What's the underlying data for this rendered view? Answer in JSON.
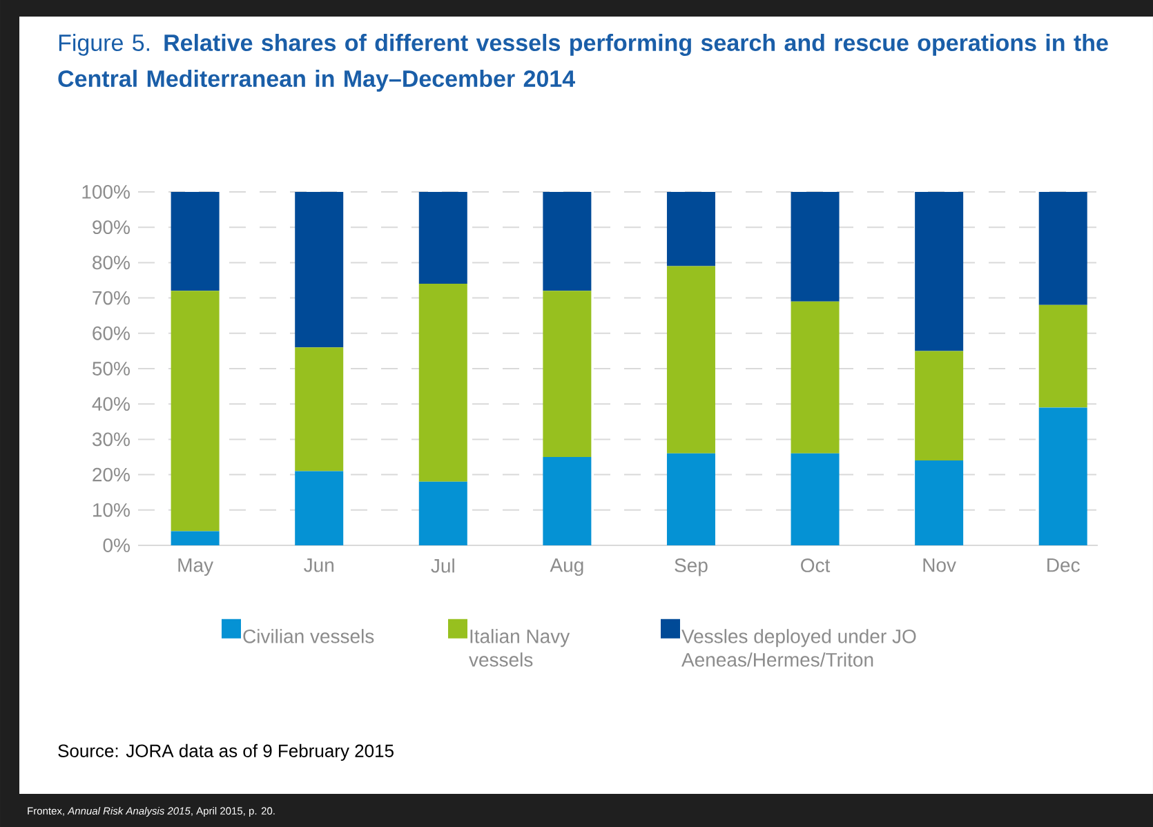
{
  "chart_data": {
    "type": "bar",
    "stacked": true,
    "title": "Figure 5. **Relative shares of different vessels performing search and rescue operations in the Central Mediterranean in May–December 2014**",
    "categories": [
      "May",
      "Jun",
      "Jul",
      "Aug",
      "Sep",
      "Oct",
      "Nov",
      "Dec"
    ],
    "series": [
      {
        "name": "Civilian vessels",
        "color": "#0592d4",
        "values": [
          4,
          21,
          18,
          25,
          26,
          26,
          24,
          39
        ]
      },
      {
        "name": "Italian Navy vessels",
        "color": "#97c01f",
        "values": [
          68,
          35,
          56,
          47,
          53,
          43,
          31,
          29
        ]
      },
      {
        "name": "Vessles deployed under JO Aeneas/Hermes/Triton",
        "color": "#004a97",
        "values": [
          28,
          44,
          26,
          28,
          21,
          31,
          45,
          32
        ]
      }
    ],
    "ylim": [
      0,
      100
    ],
    "yticks": [
      {
        "value": 0,
        "label": "0%"
      },
      {
        "value": 10,
        "label": "10%"
      },
      {
        "value": 20,
        "label": "20%"
      },
      {
        "value": 30,
        "label": "30%"
      },
      {
        "value": 40,
        "label": "40%"
      },
      {
        "value": 50,
        "label": "50%"
      },
      {
        "value": 60,
        "label": "60%"
      },
      {
        "value": 70,
        "label": "70%"
      },
      {
        "value": 80,
        "label": "80%"
      },
      {
        "value": 90,
        "label": "90%"
      },
      {
        "value": 100,
        "label": "100%"
      }
    ],
    "grid": "y",
    "legend": "bottom",
    "annotations": [
      "Source: JORA data as of 9 February 2015",
      "Frontex, *Annual Risk Analysis 2015*, April 2015, p. 20."
    ]
  }
}
